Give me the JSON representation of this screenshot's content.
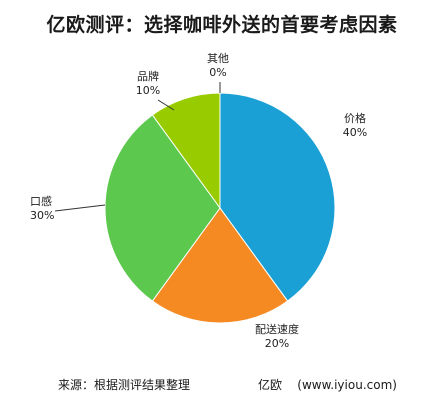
{
  "title": "亿欧测评：选择咖啡外送的首要考虑因素",
  "footer": {
    "source": "来源：根据测评结果整理",
    "credit": "亿欧    (www.iyiou.com)"
  },
  "chart_data": {
    "type": "pie",
    "title": "亿欧测评：选择咖啡外送的首要考虑因素",
    "slices": [
      {
        "label": "价格",
        "value": 40,
        "display": "40%",
        "color": "#1aa0d4"
      },
      {
        "label": "配送速度",
        "value": 20,
        "display": "20%",
        "color": "#f58a22"
      },
      {
        "label": "口感",
        "value": 30,
        "display": "30%",
        "color": "#5cc84d"
      },
      {
        "label": "品牌",
        "value": 10,
        "display": "10%",
        "color": "#99cc00"
      },
      {
        "label": "其他",
        "value": 0,
        "display": "0%",
        "color": "#cccccc"
      }
    ]
  }
}
